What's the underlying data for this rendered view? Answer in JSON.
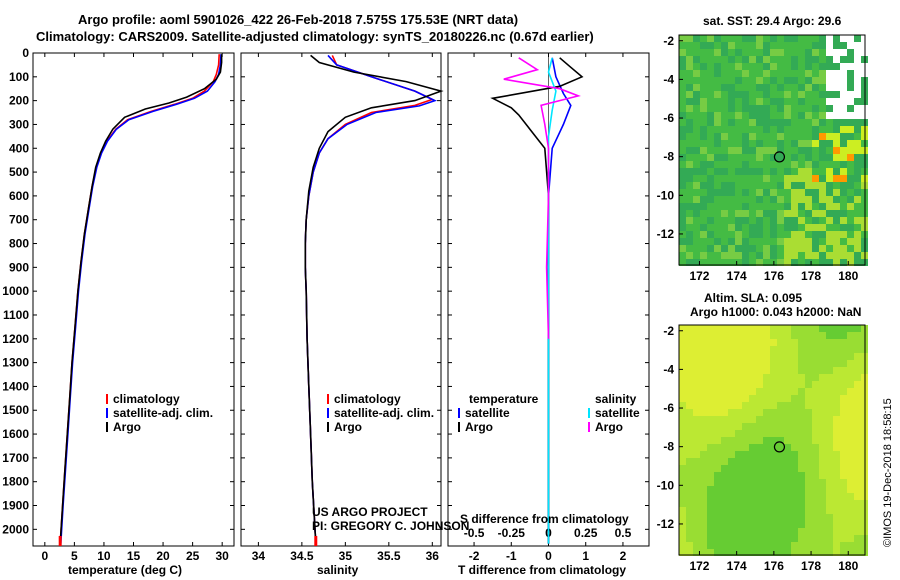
{
  "header": {
    "line1": "Argo profile: aoml 5901026_422 26-Feb-2018 7.575S 175.53E (NRT data)",
    "line2": "Climatology: CARS2009. Satellite-adjusted climatology: synTS_20180226.nc (0.67d earlier)"
  },
  "colors": {
    "climatology": "#ff0000",
    "satellite": "#0000ff",
    "argo": "#000000",
    "sat_salinity": "#00e5ff",
    "argo_salinity": "#ff00ff"
  },
  "chart_data": [
    {
      "type": "line",
      "name": "temperature-profile",
      "xlabel": "temperature (deg C)",
      "xlim": [
        -2,
        32
      ],
      "ylim": [
        2070,
        0
      ],
      "xticks": [
        0,
        5,
        10,
        15,
        20,
        25,
        30
      ],
      "yticks": [
        0,
        100,
        200,
        300,
        400,
        500,
        600,
        700,
        800,
        900,
        1000,
        1100,
        1200,
        1300,
        1400,
        1500,
        1600,
        1700,
        1800,
        1900,
        2000
      ],
      "legend": [
        "climatology",
        "satellite-adj. clim.",
        "Argo"
      ],
      "series": [
        {
          "name": "climatology",
          "color": "#ff0000",
          "points": [
            [
              29.5,
              5
            ],
            [
              29.4,
              50
            ],
            [
              29,
              90
            ],
            [
              28.5,
              120
            ],
            [
              27,
              160
            ],
            [
              25,
              190
            ],
            [
              22,
              215
            ],
            [
              18,
              245
            ],
            [
              14,
              280
            ],
            [
              12,
              320
            ],
            [
              10.5,
              370
            ],
            [
              9.5,
              420
            ],
            [
              8.7,
              480
            ],
            [
              8,
              560
            ],
            [
              7.4,
              650
            ],
            [
              6.7,
              760
            ],
            [
              6.1,
              880
            ],
            [
              5.6,
              1000
            ],
            [
              5.1,
              1150
            ],
            [
              4.6,
              1300
            ],
            [
              4.2,
              1450
            ],
            [
              3.8,
              1600
            ],
            [
              3.4,
              1750
            ],
            [
              3,
              1900
            ],
            [
              2.6,
              2060
            ]
          ]
        },
        {
          "name": "satellite",
          "color": "#0000ff",
          "points": [
            [
              29.8,
              5
            ],
            [
              29.7,
              50
            ],
            [
              29.4,
              90
            ],
            [
              28.8,
              120
            ],
            [
              27.5,
              160
            ],
            [
              25.3,
              190
            ],
            [
              22.3,
              215
            ],
            [
              18.3,
              245
            ],
            [
              14.2,
              280
            ],
            [
              12.1,
              320
            ],
            [
              10.6,
              370
            ],
            [
              9.6,
              420
            ],
            [
              8.8,
              480
            ],
            [
              8.1,
              560
            ],
            [
              7.5,
              650
            ],
            [
              6.8,
              760
            ],
            [
              6.2,
              880
            ],
            [
              5.7,
              1000
            ],
            [
              5.2,
              1150
            ],
            [
              4.7,
              1300
            ],
            [
              4.3,
              1450
            ],
            [
              3.9,
              1600
            ],
            [
              3.5,
              1750
            ],
            [
              3.1,
              1900
            ],
            [
              2.7,
              2060
            ]
          ]
        },
        {
          "name": "Argo",
          "color": "#000000",
          "points": [
            [
              29.9,
              5
            ],
            [
              29.9,
              40
            ],
            [
              29.7,
              80
            ],
            [
              29,
              110
            ],
            [
              27,
              150
            ],
            [
              24,
              185
            ],
            [
              21,
              210
            ],
            [
              17,
              235
            ],
            [
              13.5,
              270
            ],
            [
              11.5,
              320
            ],
            [
              10.3,
              370
            ],
            [
              9.4,
              420
            ],
            [
              8.6,
              480
            ],
            [
              8,
              560
            ],
            [
              7.4,
              650
            ],
            [
              6.7,
              760
            ],
            [
              6.1,
              880
            ],
            [
              5.6,
              1000
            ],
            [
              5.1,
              1150
            ],
            [
              4.6,
              1300
            ],
            [
              4.2,
              1450
            ],
            [
              3.8,
              1600
            ],
            [
              3.4,
              1750
            ],
            [
              3,
              1900
            ],
            [
              2.6,
              2060
            ]
          ]
        }
      ]
    },
    {
      "type": "line",
      "name": "salinity-profile",
      "xlabel": "salinity",
      "xlim": [
        33.8,
        36.1
      ],
      "ylim": [
        2070,
        0
      ],
      "xticks": [
        34,
        34.5,
        35,
        35.5,
        36
      ],
      "legend": [
        "climatology",
        "satellite-adj. clim.",
        "Argo"
      ],
      "series": [
        {
          "name": "climatology",
          "color": "#ff0000",
          "points": [
            [
              34.85,
              10
            ],
            [
              34.9,
              50
            ],
            [
              35.3,
              100
            ],
            [
              35.8,
              160
            ],
            [
              36,
              195
            ],
            [
              35.8,
              220
            ],
            [
              35.3,
              250
            ],
            [
              35,
              300
            ],
            [
              34.8,
              360
            ],
            [
              34.7,
              420
            ],
            [
              34.63,
              500
            ],
            [
              34.58,
              600
            ],
            [
              34.55,
              700
            ],
            [
              34.54,
              800
            ],
            [
              34.54,
              900
            ],
            [
              34.55,
              1000
            ],
            [
              34.56,
              1200
            ],
            [
              34.58,
              1400
            ],
            [
              34.6,
              1600
            ],
            [
              34.62,
              1800
            ],
            [
              34.66,
              2060
            ]
          ]
        },
        {
          "name": "satellite",
          "color": "#0000ff",
          "points": [
            [
              34.8,
              10
            ],
            [
              34.9,
              50
            ],
            [
              35.3,
              100
            ],
            [
              35.8,
              160
            ],
            [
              36.03,
              200
            ],
            [
              35.85,
              222
            ],
            [
              35.35,
              250
            ],
            [
              35.02,
              300
            ],
            [
              34.8,
              360
            ],
            [
              34.7,
              420
            ],
            [
              34.63,
              500
            ],
            [
              34.58,
              600
            ],
            [
              34.55,
              700
            ],
            [
              34.54,
              800
            ],
            [
              34.54,
              900
            ],
            [
              34.55,
              1000
            ],
            [
              34.56,
              1200
            ],
            [
              34.58,
              1400
            ],
            [
              34.6,
              1600
            ],
            [
              34.62,
              1800
            ],
            [
              34.66,
              2060
            ]
          ]
        },
        {
          "name": "Argo",
          "color": "#000000",
          "points": [
            [
              34.6,
              10
            ],
            [
              34.7,
              40
            ],
            [
              35.1,
              80
            ],
            [
              35.7,
              120
            ],
            [
              36.1,
              160
            ],
            [
              35.8,
              200
            ],
            [
              35.3,
              230
            ],
            [
              35,
              270
            ],
            [
              34.8,
              330
            ],
            [
              34.7,
              400
            ],
            [
              34.63,
              480
            ],
            [
              34.58,
              580
            ],
            [
              34.55,
              700
            ],
            [
              34.54,
              800
            ],
            [
              34.54,
              900
            ],
            [
              34.55,
              1000
            ],
            [
              34.56,
              1200
            ],
            [
              34.58,
              1400
            ],
            [
              34.6,
              1600
            ],
            [
              34.62,
              1800
            ],
            [
              34.66,
              2060
            ]
          ]
        }
      ],
      "annotations": [
        "US ARGO PROJECT",
        "PI: GREGORY C. JOHNSON"
      ]
    },
    {
      "type": "line",
      "name": "difference-profile",
      "xlabel": "T difference from climatology",
      "toplabel": "S difference from climatology",
      "xlim": [
        -2.7,
        2.7
      ],
      "ylim": [
        2070,
        0
      ],
      "xticks": [
        -2,
        -1,
        0,
        1,
        2
      ],
      "top_ticks": [
        "-0.5",
        "-0.25",
        "0",
        "0.25",
        "0.5"
      ],
      "legend_left": [
        "temperature",
        "satellite",
        "Argo"
      ],
      "legend_right": [
        "salinity",
        "satellite",
        "Argo"
      ],
      "series": [
        {
          "name": "T satellite",
          "color": "#0000ff",
          "points": [
            [
              0.1,
              20
            ],
            [
              0.2,
              100
            ],
            [
              0.4,
              170
            ],
            [
              0.6,
              220
            ],
            [
              0.4,
              300
            ],
            [
              0.1,
              400
            ],
            [
              0,
              600
            ],
            [
              0,
              1000
            ],
            [
              0,
              1500
            ],
            [
              0,
              2060
            ]
          ]
        },
        {
          "name": "T Argo",
          "color": "#000000",
          "points": [
            [
              0.3,
              20
            ],
            [
              0.6,
              60
            ],
            [
              0.9,
              100
            ],
            [
              0.3,
              140
            ],
            [
              -1.5,
              190
            ],
            [
              -1.0,
              230
            ],
            [
              -0.8,
              260
            ],
            [
              -0.5,
              320
            ],
            [
              -0.1,
              400
            ],
            [
              0,
              600
            ],
            [
              0,
              1000
            ],
            [
              0,
              1500
            ],
            [
              0,
              2060
            ]
          ]
        },
        {
          "name": "S satellite",
          "color": "#00e5ff",
          "points": [
            [
              0.1,
              20
            ],
            [
              0,
              80
            ],
            [
              0.2,
              160
            ],
            [
              0.1,
              240
            ],
            [
              0,
              350
            ],
            [
              0,
              600
            ],
            [
              0,
              1000
            ],
            [
              0,
              1500
            ],
            [
              0,
              2060
            ]
          ]
        },
        {
          "name": "S Argo",
          "color": "#ff00ff",
          "points": [
            [
              -0.8,
              20
            ],
            [
              -0.3,
              70
            ],
            [
              -1.2,
              110
            ],
            [
              0.3,
              150
            ],
            [
              0.8,
              180
            ],
            [
              -0.2,
              220
            ],
            [
              -0.1,
              300
            ],
            [
              0,
              400
            ],
            [
              0,
              600
            ],
            [
              -0.05,
              900
            ],
            [
              0,
              1200
            ]
          ]
        }
      ]
    }
  ],
  "maps": {
    "sst": {
      "title": "sat. SST: 29.4 Argo: 29.6",
      "xticks": [
        "172",
        "174",
        "176",
        "178",
        "180"
      ],
      "yticks": [
        "-2",
        "-4",
        "-6",
        "-8",
        "-10",
        "-12"
      ]
    },
    "sla": {
      "title1": "Altim. SLA: 0.095",
      "title2": "Argo h1000: 0.043 h2000: NaN",
      "xticks": [
        "172",
        "174",
        "176",
        "178",
        "180"
      ],
      "yticks": [
        "-2",
        "-4",
        "-6",
        "-8",
        "-10",
        "-12"
      ]
    }
  },
  "footer": "©IMOS 19-Dec-2018 18:58:15"
}
